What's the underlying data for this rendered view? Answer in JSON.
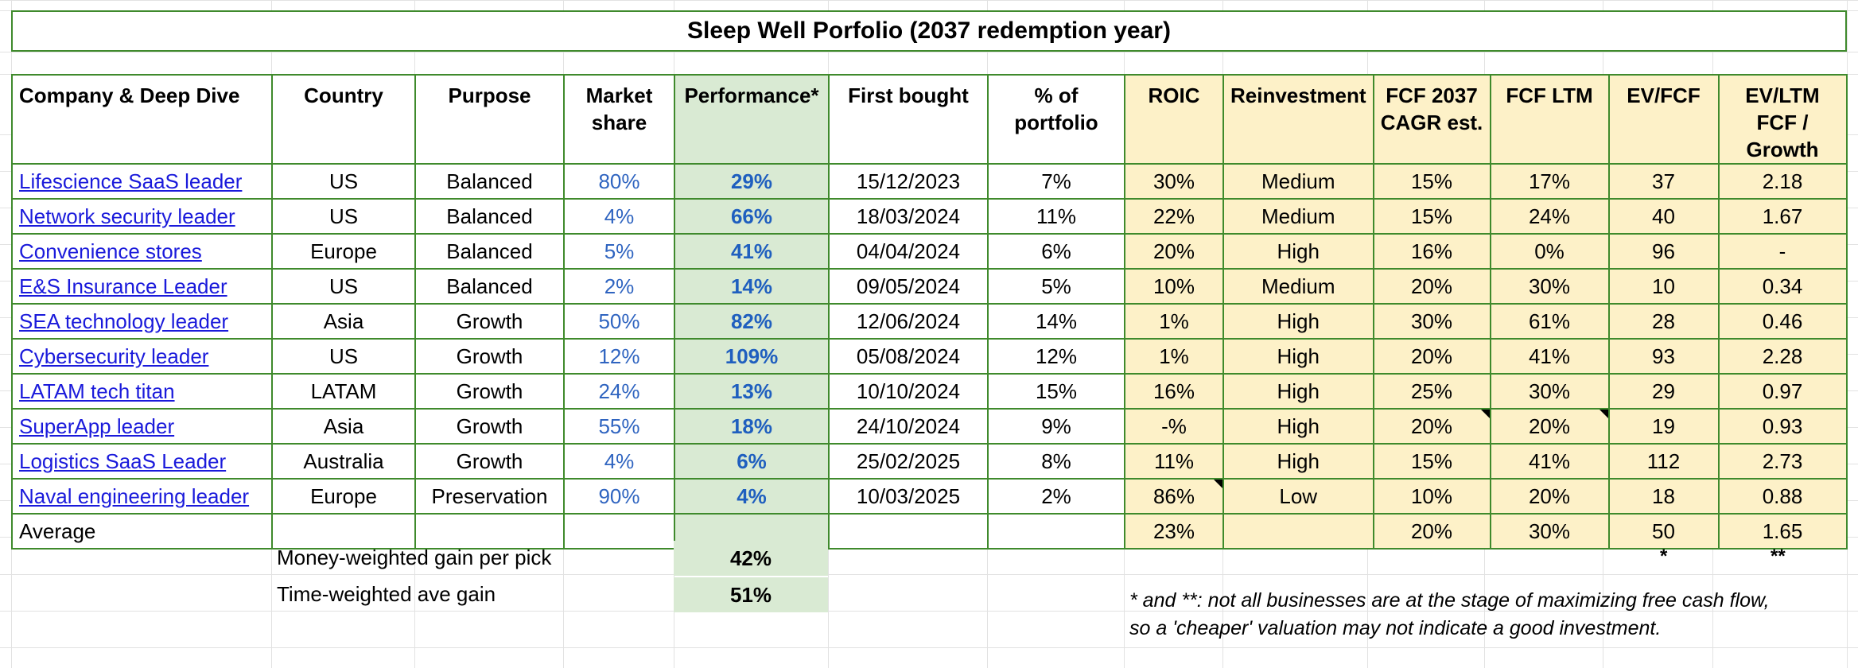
{
  "title": "Sleep Well Porfolio (2037 redemption year)",
  "headers": {
    "company": "Company & Deep Dive",
    "country": "Country",
    "purpose": "Purpose",
    "market_share": "Market share",
    "performance": "Performance*",
    "first_bought": "First bought",
    "pct_portfolio": "% of portfolio",
    "roic": "ROIC",
    "reinvestment": "Reinvestment",
    "fcf_cagr": "FCF 2037 CAGR est.",
    "fcf_ltm": "FCF LTM",
    "ev_fcf": "EV/FCF",
    "ev_ltm": "EV/LTM FCF / Growth"
  },
  "rows": [
    {
      "name": "Lifescience SaaS leader",
      "country": "US",
      "purpose": "Balanced",
      "share": "80%",
      "perf": "29%",
      "bought": "15/12/2023",
      "pct": "7%",
      "roic": "30%",
      "reinv": "Medium",
      "cagr": "15%",
      "ltm": "17%",
      "evfcf": "37",
      "evltm": "2.18"
    },
    {
      "name": "Network security leader",
      "country": "US",
      "purpose": "Balanced",
      "share": "4%",
      "perf": "66%",
      "bought": "18/03/2024",
      "pct": "11%",
      "roic": "22%",
      "reinv": "Medium",
      "cagr": "15%",
      "ltm": "24%",
      "evfcf": "40",
      "evltm": "1.67"
    },
    {
      "name": "Convenience stores",
      "country": "Europe",
      "purpose": "Balanced",
      "share": "5%",
      "perf": "41%",
      "bought": "04/04/2024",
      "pct": "6%",
      "roic": "20%",
      "reinv": "High",
      "cagr": "16%",
      "ltm": "0%",
      "evfcf": "96",
      "evltm": "-"
    },
    {
      "name": "E&S Insurance Leader",
      "country": "US",
      "purpose": "Balanced",
      "share": "2%",
      "perf": "14%",
      "bought": "09/05/2024",
      "pct": "5%",
      "roic": "10%",
      "reinv": "Medium",
      "cagr": "20%",
      "ltm": "30%",
      "evfcf": "10",
      "evltm": "0.34"
    },
    {
      "name": "SEA technology leader",
      "country": "Asia",
      "purpose": "Growth",
      "share": "50%",
      "perf": "82%",
      "bought": "12/06/2024",
      "pct": "14%",
      "roic": "1%",
      "reinv": "High",
      "cagr": "30%",
      "ltm": "61%",
      "evfcf": "28",
      "evltm": "0.46"
    },
    {
      "name": "Cybersecurity leader",
      "country": "US",
      "purpose": "Growth",
      "share": "12%",
      "perf": "109%",
      "bought": "05/08/2024",
      "pct": "12%",
      "roic": "1%",
      "reinv": "High",
      "cagr": "20%",
      "ltm": "41%",
      "evfcf": "93",
      "evltm": "2.28"
    },
    {
      "name": "LATAM tech titan",
      "country": "LATAM",
      "purpose": "Growth",
      "share": "24%",
      "perf": "13%",
      "bought": "10/10/2024",
      "pct": "15%",
      "roic": "16%",
      "reinv": "High",
      "cagr": "25%",
      "ltm": "30%",
      "evfcf": "29",
      "evltm": "0.97"
    },
    {
      "name": "SuperApp leader",
      "country": "Asia",
      "purpose": "Growth",
      "share": "55%",
      "perf": "18%",
      "bought": "24/10/2024",
      "pct": "9%",
      "roic": "-%",
      "reinv": "High",
      "cagr": "20%",
      "ltm": "20%",
      "evfcf": "19",
      "evltm": "0.93"
    },
    {
      "name": "Logistics SaaS Leader",
      "country": "Australia",
      "purpose": "Growth",
      "share": "4%",
      "perf": "6%",
      "bought": "25/02/2025",
      "pct": "8%",
      "roic": "11%",
      "reinv": "High",
      "cagr": "15%",
      "ltm": "41%",
      "evfcf": "112",
      "evltm": "2.73"
    },
    {
      "name": "Naval engineering leader",
      "country": "Europe",
      "purpose": "Preservation",
      "share": "90%",
      "perf": "4%",
      "bought": "10/03/2025",
      "pct": "2%",
      "roic": "86%",
      "reinv": "Low",
      "cagr": "10%",
      "ltm": "20%",
      "evfcf": "18",
      "evltm": "0.88"
    }
  ],
  "average": {
    "label": "Average",
    "roic": "23%",
    "cagr": "20%",
    "ltm": "30%",
    "evfcf": "50",
    "evltm": "1.65"
  },
  "footer": {
    "money_label": "Money-weighted gain per pick",
    "money_value": "42%",
    "time_label": "Time-weighted ave gain",
    "time_value": "51%",
    "star1": "*",
    "star2": "**",
    "note_line1": "* and **: not all businesses are at the stage of maximizing free cash flow,",
    "note_line2": "so a 'cheaper' valuation may not indicate a good investment."
  }
}
